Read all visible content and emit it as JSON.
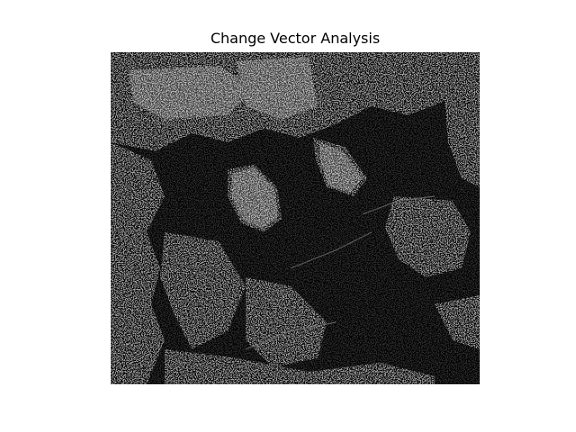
{
  "figure": {
    "title": "Change Vector Analysis"
  },
  "image": {
    "description_colors": {
      "background": "#000000",
      "change_pixels": "#8a8a8a"
    }
  }
}
